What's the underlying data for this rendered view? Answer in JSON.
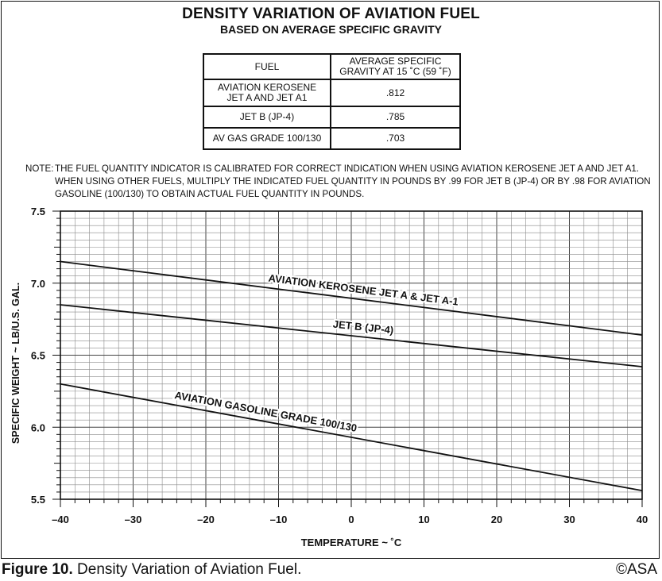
{
  "chart_data": {
    "type": "line",
    "title": "DENSITY VARIATION OF AVIATION FUEL",
    "subtitle": "BASED ON AVERAGE SPECIFIC GRAVITY",
    "xlabel": "TEMPERATURE ~ ˚C",
    "ylabel": "SPECIFIC WEIGHT ~ LB/U.S. GAL.",
    "xlim": [
      -40,
      40
    ],
    "ylim": [
      5.5,
      7.5
    ],
    "grid": true,
    "x_ticks": [
      -40,
      -30,
      -20,
      -10,
      0,
      10,
      20,
      30,
      40
    ],
    "x_tick_labels": [
      "–40",
      "–30",
      "–20",
      "–10",
      "0",
      "10",
      "20",
      "30",
      "40"
    ],
    "y_ticks": [
      5.5,
      6.0,
      6.5,
      7.0,
      7.5
    ],
    "y_tick_labels": [
      "5.5",
      "6.0",
      "6.5",
      "7.0",
      "7.5"
    ],
    "series": [
      {
        "name": "AVIATION KEROSENE JET A & JET A-1",
        "x": [
          -40,
          40
        ],
        "values": [
          7.15,
          6.64
        ],
        "label_at": 1.5
      },
      {
        "name": "JET B (JP-4)",
        "x": [
          -40,
          40
        ],
        "values": [
          6.85,
          6.42
        ],
        "label_at": 1.5
      },
      {
        "name": "AVIATION GASOLINE GRADE 100/130",
        "x": [
          -40,
          40
        ],
        "values": [
          6.3,
          5.56
        ],
        "label_at": -12
      }
    ]
  },
  "table": {
    "headers": [
      "FUEL",
      "AVERAGE SPECIFIC\nGRAVITY AT 15 ˚C (59 ˚F)"
    ],
    "rows": [
      [
        "AVIATION KEROSENE\nJET A AND JET A1",
        ".812"
      ],
      [
        "JET B (JP-4)",
        ".785"
      ],
      [
        "AV GAS GRADE 100/130",
        ".703"
      ]
    ]
  },
  "note": {
    "label": "NOTE:",
    "text": "THE FUEL QUANTITY INDICATOR IS CALIBRATED FOR CORRECT INDICATION WHEN USING AVIATION KEROSENE JET A AND JET A1. WHEN USING OTHER FUELS, MULTIPLY THE INDICATED FUEL QUANTITY IN POUNDS BY .99 FOR JET B (JP-4) OR BY .98 FOR AVIATION GASOLINE (100/130) TO OBTAIN ACTUAL FUEL QUANTITY IN POUNDS."
  },
  "caption": {
    "label": "Figure 10.",
    "text": " Density Variation of Aviation Fuel."
  },
  "copyright": "©ASA",
  "colors": {
    "ink": "#111111",
    "grid": "#8a8a8a",
    "background": "#ffffff"
  }
}
